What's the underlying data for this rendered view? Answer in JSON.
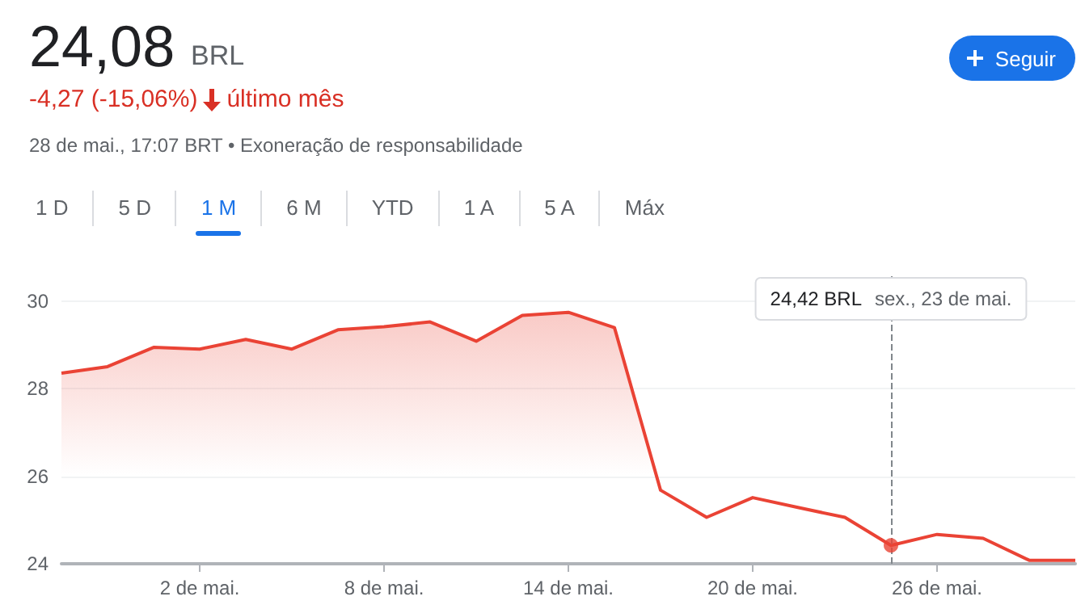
{
  "chart_data": {
    "type": "area",
    "title": "24,08",
    "subtitle": "BRL",
    "categories": [
      null,
      null,
      null,
      "2 de mai.",
      null,
      null,
      null,
      "8 de mai.",
      null,
      null,
      null,
      "14 de mai.",
      null,
      null,
      null,
      "20 de mai.",
      null,
      null,
      null,
      "26 de mai.",
      null,
      null,
      null
    ],
    "series": [
      {
        "color": "#ea4335",
        "values": [
          28.35,
          28.5,
          28.94,
          28.9,
          29.12,
          28.9,
          29.34,
          29.41,
          29.52,
          29.08,
          29.67,
          29.74,
          29.39,
          25.68,
          25.06,
          25.51,
          25.28,
          25.06,
          24.42,
          24.67,
          24.58,
          24.08,
          24.08
        ]
      },
      {
        "type": "scatter",
        "marker": "circle",
        "color": "#ea4335",
        "values": [
          null,
          null,
          null,
          null,
          null,
          null,
          null,
          null,
          null,
          null,
          null,
          null,
          null,
          null,
          null,
          null,
          null,
          null,
          24.42,
          null,
          null,
          null,
          null
        ]
      }
    ],
    "ylim": [
      24,
      30.6
    ],
    "yticks": [
      24,
      26,
      28,
      30
    ],
    "grid": "y",
    "marker": "none",
    "line_style": "solid",
    "annotations": [
      "-4,27 (-15,06%)",
      "último mês",
      "28 de mai., 17:07 BRT • Exoneração de responsabilidade",
      "1 D",
      "5 D",
      "1 M",
      "6 M",
      "YTD",
      "1 A",
      "5 A",
      "Máx",
      "Seguir",
      "24,42 BRL",
      "sex., 23 de mai."
    ]
  }
}
